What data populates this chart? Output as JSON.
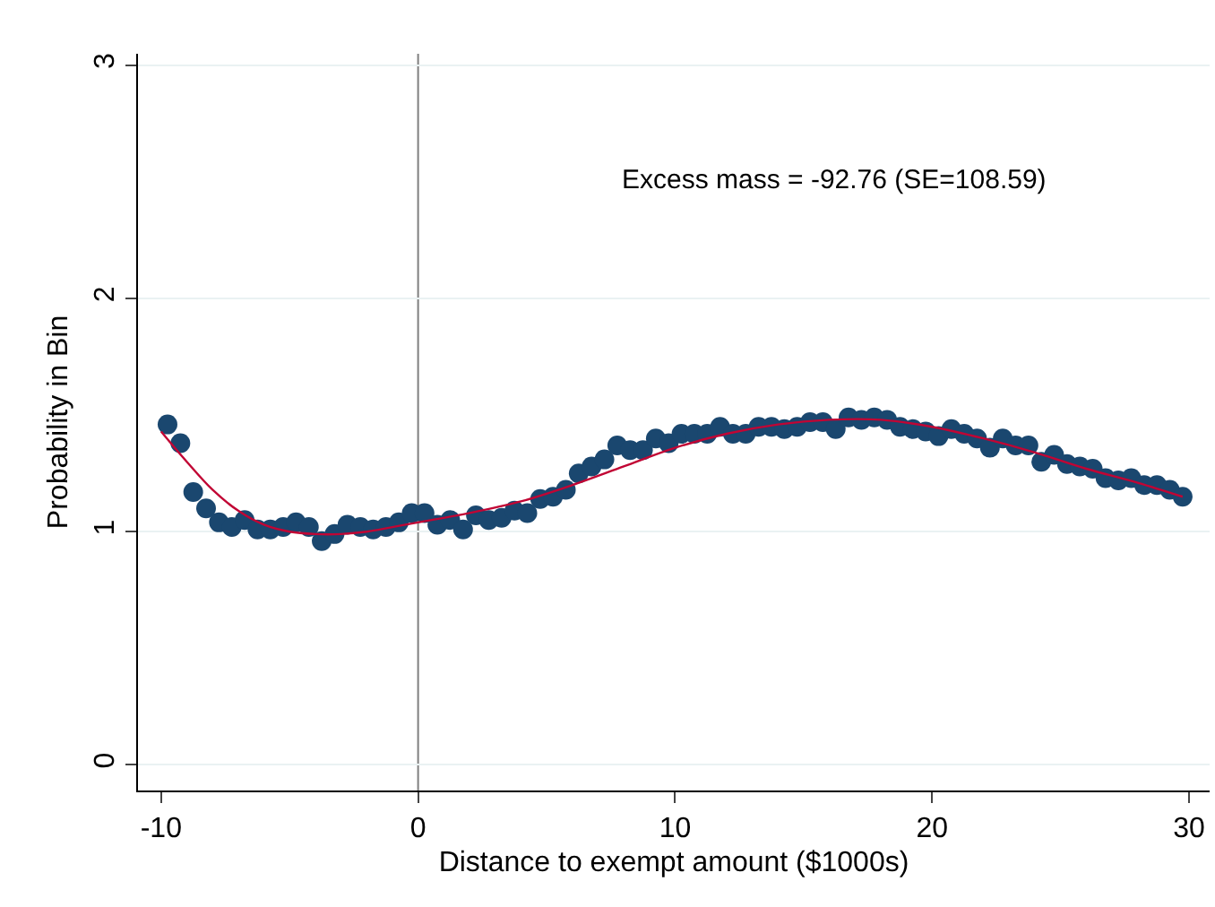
{
  "chart_data": {
    "type": "scatter",
    "xlabel": "Distance to exempt amount ($1000s)",
    "ylabel": "Probability in Bin",
    "annotations": [
      "Excess mass = -92.76 (SE=108.59)"
    ],
    "xlim": [
      -10.9,
      30.8
    ],
    "xticks": [
      -10,
      0,
      10,
      20,
      30
    ],
    "ylim": [
      -0.11,
      3.05
    ],
    "yticks": [
      0,
      1,
      2,
      3
    ],
    "grid": "y",
    "ref_lines": [
      {
        "axis": "x",
        "value": 0,
        "color": "#7f7f7f"
      }
    ],
    "series": [
      {
        "color": "#1a476f",
        "marker": "circle",
        "x": [
          -9.75,
          -9.25,
          -8.75,
          -8.25,
          -7.75,
          -7.25,
          -6.75,
          -6.25,
          -5.75,
          -5.25,
          -4.75,
          -4.25,
          -3.75,
          -3.25,
          -2.75,
          -2.25,
          -1.75,
          -1.25,
          -0.75,
          -0.25,
          0.25,
          0.75,
          1.25,
          1.75,
          2.25,
          2.75,
          3.25,
          3.75,
          4.25,
          4.75,
          5.25,
          5.75,
          6.25,
          6.75,
          7.25,
          7.75,
          8.25,
          8.75,
          9.25,
          9.75,
          10.25,
          10.75,
          11.25,
          11.75,
          12.25,
          12.75,
          13.25,
          13.75,
          14.25,
          14.75,
          15.25,
          15.75,
          16.25,
          16.75,
          17.25,
          17.75,
          18.25,
          18.75,
          19.25,
          19.75,
          20.25,
          20.75,
          21.25,
          21.75,
          22.25,
          22.75,
          23.25,
          23.75,
          24.25,
          24.75,
          25.25,
          25.75,
          26.25,
          26.75,
          27.25,
          27.75,
          28.25,
          28.75,
          29.25,
          29.75
        ],
        "values": [
          1.46,
          1.38,
          1.17,
          1.1,
          1.04,
          1.02,
          1.05,
          1.01,
          1.01,
          1.02,
          1.04,
          1.02,
          0.96,
          0.99,
          1.03,
          1.02,
          1.01,
          1.02,
          1.04,
          1.08,
          1.08,
          1.03,
          1.05,
          1.01,
          1.07,
          1.05,
          1.06,
          1.09,
          1.08,
          1.14,
          1.15,
          1.18,
          1.25,
          1.28,
          1.31,
          1.37,
          1.35,
          1.35,
          1.4,
          1.38,
          1.42,
          1.42,
          1.42,
          1.45,
          1.42,
          1.42,
          1.45,
          1.45,
          1.44,
          1.45,
          1.47,
          1.47,
          1.44,
          1.49,
          1.48,
          1.49,
          1.48,
          1.45,
          1.44,
          1.43,
          1.41,
          1.44,
          1.42,
          1.4,
          1.36,
          1.4,
          1.37,
          1.37,
          1.3,
          1.33,
          1.29,
          1.28,
          1.27,
          1.23,
          1.22,
          1.23,
          1.2,
          1.2,
          1.18,
          1.15
        ]
      },
      {
        "type": "line",
        "color": "#c10534",
        "line_style": "solid",
        "x": [
          -10,
          -9,
          -8,
          -7,
          -6,
          -5,
          -4,
          -3,
          -2,
          -1,
          0,
          2,
          4,
          6,
          8,
          10,
          12,
          14,
          16,
          18,
          20,
          22,
          24,
          26,
          28,
          29.75
        ],
        "values": [
          1.43,
          1.3,
          1.18,
          1.09,
          1.03,
          1.0,
          0.99,
          0.99,
          1.0,
          1.02,
          1.04,
          1.08,
          1.13,
          1.2,
          1.28,
          1.36,
          1.42,
          1.46,
          1.48,
          1.48,
          1.45,
          1.4,
          1.34,
          1.27,
          1.21,
          1.15
        ]
      }
    ]
  }
}
